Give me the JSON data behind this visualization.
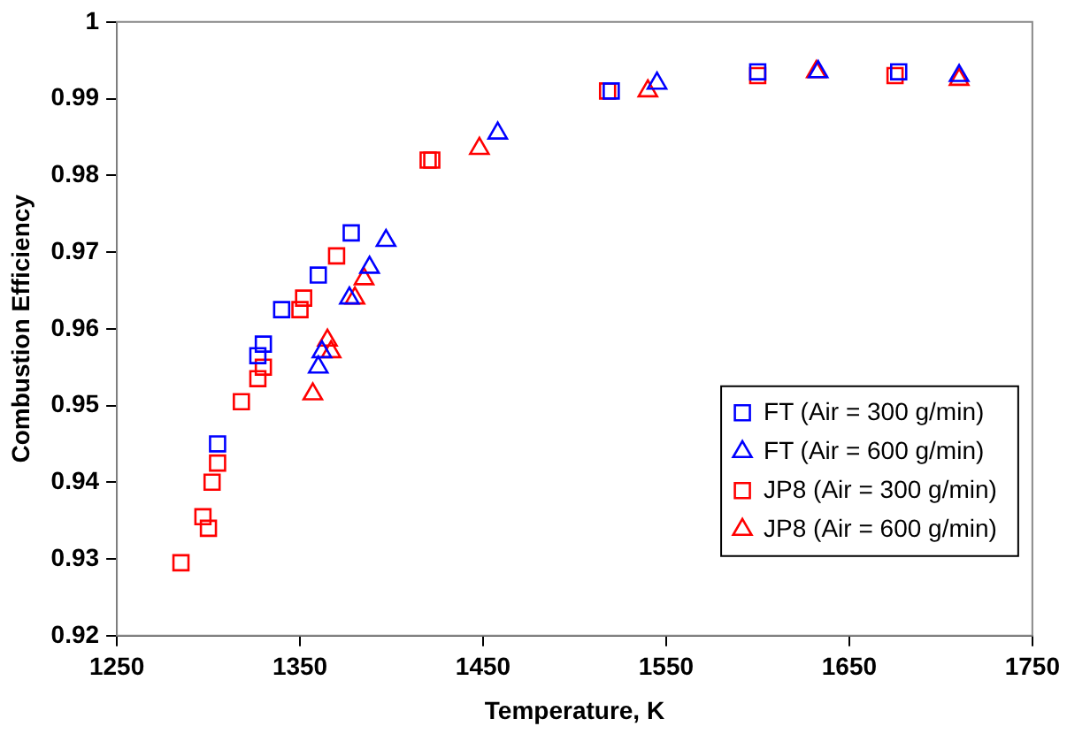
{
  "chart_data": {
    "type": "scatter",
    "xlabel": "Temperature, K",
    "ylabel": "Combustion Efficiency",
    "xlim": [
      1250,
      1750
    ],
    "xticks": [
      1250,
      1350,
      1450,
      1550,
      1650,
      1750
    ],
    "ylim": [
      0.92,
      1
    ],
    "yticks": [
      0.92,
      0.93,
      0.94,
      0.95,
      0.96,
      0.97,
      0.98,
      0.99,
      1
    ],
    "grid": false,
    "legend": "bottom right",
    "series": [
      {
        "name": "FT (Air = 300 g/min)",
        "color": "#0000ff",
        "marker": "square",
        "x": [
          1305,
          1327,
          1330,
          1340,
          1360,
          1378,
          1520,
          1600,
          1677
        ],
        "values": [
          0.945,
          0.9565,
          0.958,
          0.9625,
          0.967,
          0.9725,
          0.991,
          0.9935,
          0.9935
        ]
      },
      {
        "name": "FT (Air = 600 g/min)",
        "color": "#0000ff",
        "marker": "triangle",
        "x": [
          1360,
          1362,
          1377,
          1388,
          1397,
          1458,
          1545,
          1633,
          1710
        ],
        "values": [
          0.955,
          0.957,
          0.964,
          0.968,
          0.9715,
          0.9855,
          0.992,
          0.9935,
          0.993
        ]
      },
      {
        "name": "JP8 (Air = 300 g/min)",
        "color": "#ff0000",
        "marker": "square",
        "x": [
          1285,
          1297,
          1300,
          1302,
          1305,
          1318,
          1327,
          1330,
          1350,
          1352,
          1370,
          1420,
          1422,
          1518,
          1600,
          1675
        ],
        "values": [
          0.9295,
          0.9355,
          0.934,
          0.94,
          0.9425,
          0.9505,
          0.9535,
          0.955,
          0.9625,
          0.964,
          0.9695,
          0.982,
          0.982,
          0.991,
          0.993,
          0.993
        ]
      },
      {
        "name": "JP8 (Air = 600 g/min)",
        "color": "#ff0000",
        "marker": "triangle",
        "x": [
          1357,
          1365,
          1367,
          1380,
          1385,
          1448,
          1540,
          1632,
          1710
        ],
        "values": [
          0.9515,
          0.9585,
          0.957,
          0.964,
          0.9665,
          0.9835,
          0.991,
          0.9935,
          0.9925
        ]
      }
    ]
  }
}
